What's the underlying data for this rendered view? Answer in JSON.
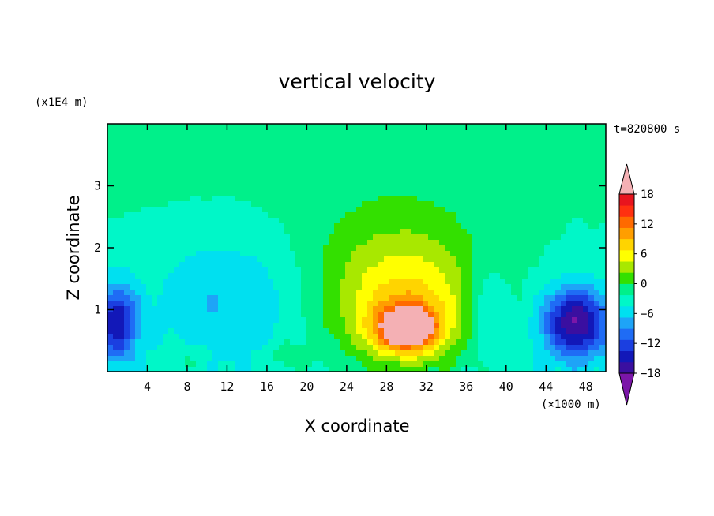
{
  "chart_data": {
    "type": "heatmap",
    "title": "vertical velocity",
    "xlabel": "X coordinate",
    "ylabel": "Z coordinate",
    "x_unit": "(×1000 m)",
    "y_unit": "(x1E4 m)",
    "time_label": "t=820800 s",
    "xlim": [
      0,
      50
    ],
    "ylim": [
      0,
      4
    ],
    "x_ticks": [
      4,
      8,
      12,
      16,
      20,
      24,
      28,
      32,
      36,
      40,
      44,
      48
    ],
    "y_ticks": [
      1,
      2,
      3
    ],
    "colorbar": {
      "labels": [
        "18",
        "12",
        "6",
        "0",
        "−6",
        "−12",
        "−18"
      ],
      "label_values": [
        18,
        12,
        6,
        0,
        -6,
        -12,
        -18
      ],
      "levels": [
        -21,
        -18,
        -15,
        -12,
        -9,
        -6,
        -3,
        0,
        3,
        6,
        9,
        12,
        15,
        18,
        21
      ],
      "colors": [
        "#7b16a8",
        "#3a0fa0",
        "#1218b8",
        "#1b3fe0",
        "#1f6cf5",
        "#1ea4f7",
        "#00e0f0",
        "#00f7c8",
        "#00f08a",
        "#33e000",
        "#a8e800",
        "#ffff00",
        "#ffd400",
        "#ff9e00",
        "#ff6a00",
        "#ff3010",
        "#e8141e",
        "#f4b0b4"
      ],
      "extend": "both"
    },
    "features": [
      {
        "type": "updraft",
        "x": 30,
        "z": 0.7,
        "value": 22,
        "sx": 3.0,
        "sz": 0.35
      },
      {
        "type": "updraft-halo",
        "x": 30,
        "z": 0.9,
        "value": 12,
        "sx": 7.5,
        "sz": 1.0
      },
      {
        "type": "updraft-top",
        "x": 29,
        "z": 1.8,
        "value": 5,
        "sx": 9.0,
        "sz": 1.2
      },
      {
        "type": "downdraft",
        "x": 47,
        "z": 0.8,
        "value": -20,
        "sx": 3.2,
        "sz": 0.55
      },
      {
        "type": "downdraft",
        "x": 1,
        "z": 0.8,
        "value": -16,
        "sx": 2.0,
        "sz": 0.6
      },
      {
        "type": "downdraft",
        "x": 12,
        "z": 1.2,
        "value": -5,
        "sx": 7.0,
        "sz": 1.0
      },
      {
        "type": "downdraft",
        "x": 38,
        "z": 1.0,
        "value": -6,
        "sx": 2.0,
        "sz": 0.7
      },
      {
        "type": "weak-up",
        "x": 18,
        "z": 0.25,
        "value": 4,
        "sx": 2.5,
        "sz": 0.25
      },
      {
        "type": "weak-up",
        "x": 8,
        "z": 0.2,
        "value": 3,
        "sx": 2.5,
        "sz": 0.25
      }
    ]
  }
}
